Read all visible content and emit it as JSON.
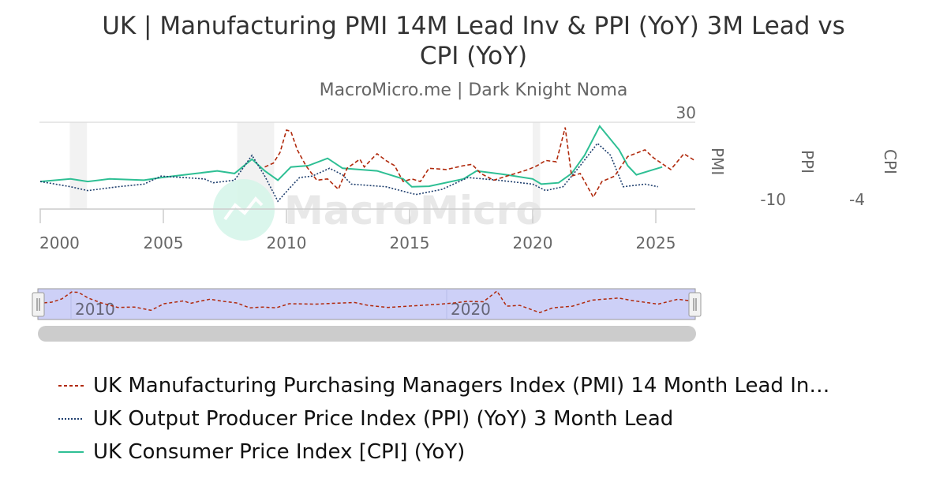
{
  "header": {
    "title_line1": "UK | Manufacturing PMI 14M Lead Inv & PPI (YoY) 3M Lead vs",
    "title_line2": "CPI (YoY)",
    "subtitle": "MacroMicro.me | Dark Knight Noma"
  },
  "watermark": "MacroMicro",
  "chart_data": {
    "type": "line",
    "title": "UK | Manufacturing PMI 14M Lead Inv & PPI (YoY) 3M Lead vs CPI (YoY)",
    "subtitle": "MacroMicro.me | Dark Knight Noma",
    "xlim": [
      2000,
      2026.6
    ],
    "x_ticks": [
      "2000",
      "2005",
      "2010",
      "2015",
      "2020",
      "2025"
    ],
    "ylim": [
      -10,
      30
    ],
    "axes": [
      {
        "label": "PMI",
        "tick_labels": [
          "30"
        ]
      },
      {
        "label": "PPI",
        "tick_labels": [
          "-10"
        ]
      },
      {
        "label": "CPI",
        "tick_labels": [
          "-4"
        ]
      }
    ],
    "recession_bands": [
      [
        2001.2,
        2001.9
      ],
      [
        2008.0,
        2009.5
      ],
      [
        2020.0,
        2020.3
      ]
    ],
    "grid": true,
    "legend_position": "bottom",
    "series": [
      {
        "name": "UK Manufacturing Purchasing Managers Index (PMI) 14 Month Lead In…",
        "color": "#b0290c",
        "dash": "dashed",
        "x": [
          2009.12,
          2009.47,
          2009.74,
          2010.0,
          2010.18,
          2010.44,
          2010.79,
          2011.23,
          2011.67,
          2012.11,
          2012.46,
          2012.98,
          2013.16,
          2013.51,
          2013.68,
          2014.04,
          2014.39,
          2014.74,
          2015.09,
          2015.44,
          2015.79,
          2016.49,
          2017.19,
          2017.54,
          2017.89,
          2018.42,
          2018.95,
          2019.3,
          2019.82,
          2020.18,
          2020.53,
          2020.96,
          2021.32,
          2021.58,
          2021.93,
          2022.46,
          2022.81,
          2023.33,
          2023.86,
          2024.56,
          2024.91,
          2025.61,
          2026.14,
          2026.58
        ],
        "y": [
          9.4,
          11.2,
          16.1,
          26.4,
          25.8,
          17.3,
          10.0,
          3.3,
          3.9,
          -0.9,
          8.8,
          13.0,
          9.4,
          13.6,
          15.5,
          12.4,
          10.0,
          2.7,
          3.9,
          2.7,
          8.8,
          8.2,
          10.0,
          10.6,
          6.4,
          3.3,
          5.2,
          6.4,
          8.2,
          10.0,
          12.4,
          11.8,
          27.6,
          5.2,
          6.4,
          -4.5,
          2.7,
          5.2,
          14.2,
          17.3,
          13.6,
          8.2,
          15.5,
          12.4
        ]
      },
      {
        "name": "UK Output Producer Price Index (PPI) (YoY) 3 Month Lead",
        "color": "#1f3f6e",
        "dash": "dotted",
        "x": [
          2000.0,
          2001.23,
          2001.93,
          2003.16,
          2004.21,
          2004.91,
          2006.67,
          2007.02,
          2007.89,
          2008.6,
          2009.12,
          2009.65,
          2010.18,
          2010.53,
          2011.05,
          2011.75,
          2012.28,
          2012.63,
          2014.04,
          2015.26,
          2016.32,
          2017.37,
          2018.6,
          2020.0,
          2020.53,
          2021.23,
          2021.93,
          2022.63,
          2023.16,
          2023.68,
          2024.56,
          2025.09
        ],
        "y": [
          2.7,
          0.3,
          -1.5,
          0.3,
          1.5,
          5.2,
          3.9,
          2.1,
          3.3,
          14.8,
          5.2,
          -6.4,
          0.3,
          4.5,
          5.2,
          8.8,
          5.8,
          1.5,
          0.3,
          -3.3,
          -0.9,
          4.5,
          3.3,
          1.5,
          -1.5,
          0.3,
          10.0,
          20.3,
          14.8,
          0.3,
          1.5,
          0.3
        ]
      },
      {
        "name": "UK Consumer Price Index [CPI] (YoY)",
        "color": "#2ebf94",
        "dash": "solid",
        "x": [
          2000.0,
          2001.23,
          2001.93,
          2002.81,
          2004.21,
          2004.91,
          2006.32,
          2007.19,
          2007.89,
          2008.6,
          2009.12,
          2009.65,
          2010.18,
          2010.88,
          2011.67,
          2012.28,
          2013.68,
          2014.74,
          2015.09,
          2015.79,
          2017.19,
          2017.72,
          2018.95,
          2020.0,
          2020.35,
          2021.05,
          2021.58,
          2022.11,
          2022.72,
          2023.51,
          2023.86,
          2024.21,
          2024.91,
          2025.26
        ],
        "y": [
          2.7,
          3.9,
          2.7,
          3.9,
          3.3,
          4.5,
          6.4,
          7.6,
          6.4,
          13.0,
          7.6,
          3.3,
          9.4,
          10.0,
          13.4,
          8.8,
          7.6,
          3.9,
          0.3,
          0.5,
          3.9,
          7.6,
          5.8,
          3.9,
          1.5,
          2.1,
          6.4,
          14.8,
          28.2,
          17.3,
          10.0,
          5.8,
          8.2,
          9.4
        ]
      }
    ]
  },
  "navigator": {
    "labels": [
      "2010",
      "2020"
    ],
    "range": [
      2009.1,
      2026.6
    ]
  }
}
